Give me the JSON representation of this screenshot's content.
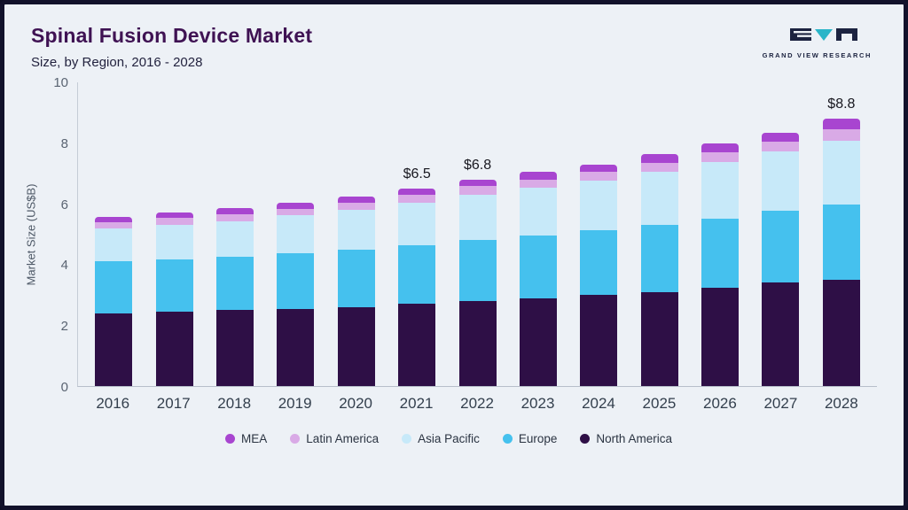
{
  "header": {
    "title": "Spinal Fusion Device Market",
    "subtitle": "Size, by Region, 2016 - 2028",
    "logo_text": "GRAND VIEW RESEARCH"
  },
  "chart_data": {
    "type": "bar",
    "stacked": true,
    "title": "Spinal Fusion Device Market Size, by Region, 2016 - 2028",
    "xlabel": "",
    "ylabel": "Market Size (US$B)",
    "ylim": [
      0,
      10
    ],
    "yticks": [
      0,
      2,
      4,
      6,
      8,
      10
    ],
    "grid": false,
    "legend_position": "bottom",
    "categories": [
      "2016",
      "2017",
      "2018",
      "2019",
      "2020",
      "2021",
      "2022",
      "2023",
      "2024",
      "2025",
      "2026",
      "2027",
      "2028"
    ],
    "series": [
      {
        "name": "North America",
        "color": "#2e0f46",
        "values": [
          2.4,
          2.45,
          2.5,
          2.55,
          2.6,
          2.7,
          2.8,
          2.9,
          3.0,
          3.1,
          3.25,
          3.4,
          3.5
        ]
      },
      {
        "name": "Europe",
        "color": "#45c1ee",
        "values": [
          1.7,
          1.72,
          1.75,
          1.82,
          1.9,
          1.95,
          2.0,
          2.05,
          2.12,
          2.22,
          2.27,
          2.37,
          2.47
        ]
      },
      {
        "name": "Asia Pacific",
        "color": "#c7e9f9",
        "values": [
          1.1,
          1.15,
          1.18,
          1.25,
          1.3,
          1.4,
          1.5,
          1.57,
          1.65,
          1.75,
          1.85,
          1.95,
          2.1
        ]
      },
      {
        "name": "Latin America",
        "color": "#d9aae6",
        "values": [
          0.2,
          0.22,
          0.22,
          0.22,
          0.24,
          0.25,
          0.28,
          0.28,
          0.28,
          0.28,
          0.32,
          0.32,
          0.38
        ]
      },
      {
        "name": "MEA",
        "color": "#a845d0",
        "values": [
          0.18,
          0.19,
          0.2,
          0.21,
          0.21,
          0.2,
          0.22,
          0.25,
          0.25,
          0.3,
          0.31,
          0.31,
          0.35
        ]
      }
    ],
    "legend_order": [
      "MEA",
      "Latin America",
      "Asia Pacific",
      "Europe",
      "North America"
    ],
    "annotations": [
      {
        "category": "2021",
        "text": "$6.5"
      },
      {
        "category": "2022",
        "text": "$6.8"
      },
      {
        "category": "2028",
        "text": "$8.8"
      }
    ]
  },
  "colors": {
    "background": "#edf1f6",
    "frame_border": "#12122b",
    "title": "#3f1253",
    "subtitle": "#23233f",
    "axis_text": "#5a6472",
    "annotation_text": "#17171f",
    "logo_dark": "#1c2340",
    "logo_teal": "#2ab5c8"
  }
}
